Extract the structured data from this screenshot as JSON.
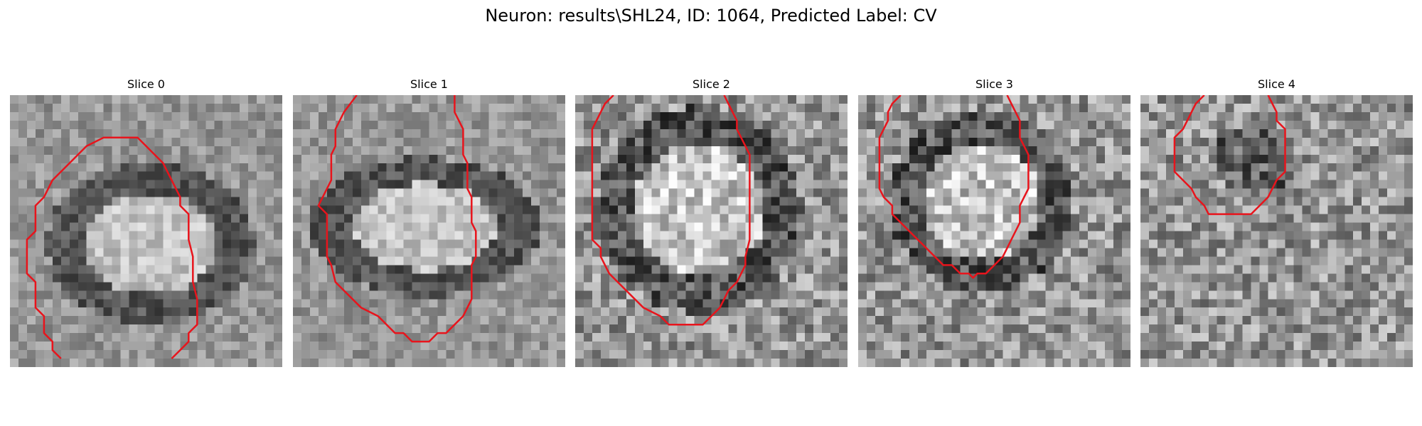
{
  "figure": {
    "title": "Neuron: results\\SHL24, ID: 1064, Predicted Label: CV"
  },
  "panels": [
    {
      "title": "Slice 0",
      "outline": [
        [
          6.0,
          31.0
        ],
        [
          5.0,
          30.0
        ],
        [
          5.0,
          29.0
        ],
        [
          4.0,
          28.0
        ],
        [
          4.0,
          26.0
        ],
        [
          3.0,
          25.0
        ],
        [
          3.0,
          22.0
        ],
        [
          2.0,
          21.0
        ],
        [
          2.0,
          17.0
        ],
        [
          3.0,
          16.0
        ],
        [
          3.0,
          13.0
        ],
        [
          4.0,
          12.0
        ],
        [
          5.0,
          10.0
        ],
        [
          7.0,
          8.0
        ],
        [
          9.0,
          6.0
        ],
        [
          11.0,
          5.0
        ],
        [
          15.0,
          5.0
        ],
        [
          16.0,
          6.0
        ],
        [
          18.0,
          8.0
        ],
        [
          19.0,
          10.0
        ],
        [
          20.0,
          12.0
        ],
        [
          20.0,
          13.0
        ],
        [
          21.0,
          14.0
        ],
        [
          21.0,
          17.0
        ],
        [
          21.5,
          19.0
        ],
        [
          21.5,
          22.0
        ],
        [
          22.0,
          24.0
        ],
        [
          22.0,
          27.0
        ],
        [
          21.0,
          28.0
        ],
        [
          21.0,
          29.0
        ],
        [
          20.0,
          30.0
        ],
        [
          19.0,
          31.0
        ]
      ]
    },
    {
      "title": "Slice 1",
      "outline": [
        [
          7.5,
          0.0
        ],
        [
          6.0,
          2.0
        ],
        [
          5.5,
          3.0
        ],
        [
          5.0,
          4.0
        ],
        [
          5.0,
          6.0
        ],
        [
          4.5,
          7.0
        ],
        [
          4.5,
          10.0
        ],
        [
          4.0,
          11.0
        ],
        [
          3.5,
          12.0
        ],
        [
          3.0,
          13.0
        ],
        [
          4.0,
          14.0
        ],
        [
          4.0,
          19.0
        ],
        [
          4.5,
          20.0
        ],
        [
          5.0,
          22.0
        ],
        [
          6.0,
          23.0
        ],
        [
          7.0,
          24.0
        ],
        [
          8.0,
          25.0
        ],
        [
          10.0,
          26.0
        ],
        [
          11.0,
          27.0
        ],
        [
          12.0,
          28.0
        ],
        [
          13.0,
          28.0
        ],
        [
          14.0,
          29.0
        ],
        [
          16.0,
          29.0
        ],
        [
          17.0,
          28.0
        ],
        [
          18.0,
          28.0
        ],
        [
          19.0,
          27.0
        ],
        [
          20.0,
          26.0
        ],
        [
          20.5,
          25.0
        ],
        [
          21.0,
          24.0
        ],
        [
          21.0,
          20.0
        ],
        [
          21.5,
          19.0
        ],
        [
          21.5,
          16.0
        ],
        [
          21.0,
          15.0
        ],
        [
          21.0,
          12.0
        ],
        [
          20.5,
          11.0
        ],
        [
          20.5,
          8.0
        ],
        [
          20.0,
          7.0
        ],
        [
          20.0,
          4.0
        ],
        [
          19.5,
          3.0
        ],
        [
          19.0,
          2.0
        ],
        [
          19.0,
          0.0
        ]
      ]
    },
    {
      "title": "Slice 2",
      "outline": [
        [
          4.5,
          0.0
        ],
        [
          3.5,
          1.0
        ],
        [
          3.0,
          2.0
        ],
        [
          2.5,
          3.0
        ],
        [
          2.0,
          4.0
        ],
        [
          2.0,
          5.0
        ],
        [
          2.0,
          13.0
        ],
        [
          2.0,
          17.0
        ],
        [
          3.0,
          18.0
        ],
        [
          3.0,
          19.0
        ],
        [
          3.5,
          20.0
        ],
        [
          4.0,
          21.0
        ],
        [
          5.0,
          22.0
        ],
        [
          6.0,
          23.0
        ],
        [
          7.0,
          24.0
        ],
        [
          8.0,
          25.0
        ],
        [
          9.0,
          25.5
        ],
        [
          10.0,
          26.0
        ],
        [
          11.0,
          27.0
        ],
        [
          15.0,
          27.0
        ],
        [
          16.0,
          26.0
        ],
        [
          17.0,
          25.0
        ],
        [
          17.5,
          24.0
        ],
        [
          18.0,
          23.0
        ],
        [
          19.0,
          22.0
        ],
        [
          19.5,
          21.0
        ],
        [
          20.0,
          20.0
        ],
        [
          20.0,
          19.0
        ],
        [
          20.5,
          17.0
        ],
        [
          20.5,
          13.0
        ],
        [
          20.5,
          7.0
        ],
        [
          20.0,
          6.0
        ],
        [
          19.5,
          5.0
        ],
        [
          19.0,
          4.0
        ],
        [
          19.0,
          3.0
        ],
        [
          18.5,
          2.0
        ],
        [
          18.0,
          1.0
        ],
        [
          17.5,
          0.0
        ]
      ]
    },
    {
      "title": "Slice 3",
      "outline": [
        [
          5.0,
          0.0
        ],
        [
          4.0,
          1.0
        ],
        [
          3.5,
          2.0
        ],
        [
          3.5,
          3.0
        ],
        [
          3.0,
          4.0
        ],
        [
          2.5,
          5.0
        ],
        [
          2.5,
          11.0
        ],
        [
          3.0,
          12.0
        ],
        [
          4.0,
          13.0
        ],
        [
          4.0,
          14.0
        ],
        [
          5.0,
          15.0
        ],
        [
          6.0,
          16.0
        ],
        [
          7.0,
          17.0
        ],
        [
          8.0,
          18.0
        ],
        [
          9.0,
          19.0
        ],
        [
          10.0,
          20.0
        ],
        [
          11.0,
          20.0
        ],
        [
          12.0,
          21.0
        ],
        [
          13.0,
          21.0
        ],
        [
          13.5,
          21.5
        ],
        [
          14.0,
          21.0
        ],
        [
          15.0,
          21.0
        ],
        [
          16.0,
          20.0
        ],
        [
          17.0,
          19.0
        ],
        [
          17.5,
          18.0
        ],
        [
          18.0,
          17.0
        ],
        [
          18.5,
          16.0
        ],
        [
          19.0,
          15.0
        ],
        [
          19.0,
          13.0
        ],
        [
          19.5,
          12.0
        ],
        [
          20.0,
          11.0
        ],
        [
          20.0,
          7.0
        ],
        [
          19.5,
          6.0
        ],
        [
          19.0,
          5.0
        ],
        [
          19.0,
          3.0
        ],
        [
          18.5,
          2.0
        ],
        [
          18.0,
          1.0
        ],
        [
          17.5,
          0.0
        ]
      ]
    },
    {
      "title": "Slice 4",
      "outline": [
        [
          7.5,
          0.0
        ],
        [
          6.5,
          1.0
        ],
        [
          6.0,
          2.0
        ],
        [
          5.5,
          3.0
        ],
        [
          5.0,
          4.0
        ],
        [
          4.0,
          5.0
        ],
        [
          4.0,
          9.0
        ],
        [
          5.0,
          10.0
        ],
        [
          6.0,
          11.0
        ],
        [
          6.5,
          12.0
        ],
        [
          7.5,
          13.0
        ],
        [
          8.0,
          14.0
        ],
        [
          12.0,
          14.0
        ],
        [
          13.0,
          14.0
        ],
        [
          14.0,
          13.0
        ],
        [
          15.0,
          12.0
        ],
        [
          15.5,
          11.0
        ],
        [
          16.0,
          10.0
        ],
        [
          17.0,
          9.0
        ],
        [
          17.0,
          4.0
        ],
        [
          16.0,
          3.0
        ],
        [
          16.0,
          2.0
        ],
        [
          15.5,
          1.0
        ],
        [
          15.0,
          0.0
        ]
      ]
    }
  ]
}
